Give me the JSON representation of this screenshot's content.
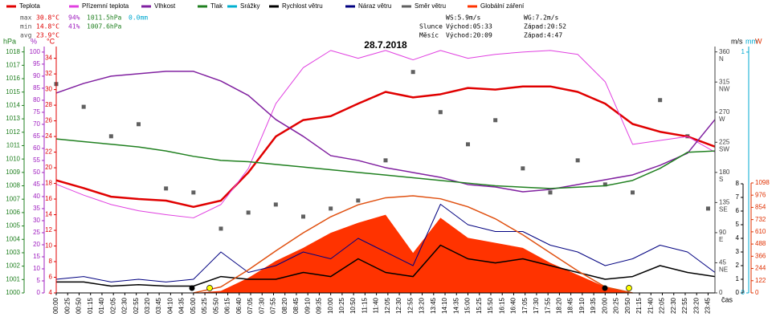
{
  "chart_data": {
    "type": "line",
    "title": "28.7.2018",
    "x_label": "čas",
    "stats": [
      {
        "label": "max",
        "temperature": "30.8°C",
        "humidity": "94%",
        "pressure": "1011.5hPa",
        "precipitation": "0.0mm"
      },
      {
        "label": "min",
        "temperature": "14.8°C",
        "humidity": "41%",
        "pressure": "1007.6hPa"
      },
      {
        "label": "avg",
        "temperature": "23.9°C"
      }
    ],
    "info": {
      "wind": "WS:5.9m/s",
      "gust": "WG:7.2m/s",
      "sun": {
        "label": "Slunce",
        "rise": "Východ:05:33",
        "set": "Západ:20:52"
      },
      "moon": {
        "label": "Měsíc",
        "rise": "Východ:20:09",
        "set": "Západ:4:47"
      }
    },
    "xlim": [
      0,
      1440
    ],
    "xticks": [
      {
        "value": 0,
        "label": "00:00"
      },
      {
        "value": 25,
        "label": "00:25"
      },
      {
        "value": 50,
        "label": "00:50"
      },
      {
        "value": 75,
        "label": "01:15"
      },
      {
        "value": 100,
        "label": "01:40"
      },
      {
        "value": 125,
        "label": "02:05"
      },
      {
        "value": 150,
        "label": "02:30"
      },
      {
        "value": 175,
        "label": "02:55"
      },
      {
        "value": 200,
        "label": "03:20"
      },
      {
        "value": 225,
        "label": "03:45"
      },
      {
        "value": 250,
        "label": "04:10"
      },
      {
        "value": 275,
        "label": "04:35"
      },
      {
        "value": 300,
        "label": "05:00"
      },
      {
        "value": 325,
        "label": "05:25"
      },
      {
        "value": 350,
        "label": "05:50"
      },
      {
        "value": 375,
        "label": "06:15"
      },
      {
        "value": 400,
        "label": "06:40"
      },
      {
        "value": 425,
        "label": "07:05"
      },
      {
        "value": 450,
        "label": "07:30"
      },
      {
        "value": 475,
        "label": "07:55"
      },
      {
        "value": 500,
        "label": "08:20"
      },
      {
        "value": 525,
        "label": "08:45"
      },
      {
        "value": 550,
        "label": "09:10"
      },
      {
        "value": 575,
        "label": "09:35"
      },
      {
        "value": 600,
        "label": "10:00"
      },
      {
        "value": 625,
        "label": "10:25"
      },
      {
        "value": 650,
        "label": "10:50"
      },
      {
        "value": 675,
        "label": "11:15"
      },
      {
        "value": 700,
        "label": "11:40"
      },
      {
        "value": 725,
        "label": "12:05"
      },
      {
        "value": 750,
        "label": "12:30"
      },
      {
        "value": 775,
        "label": "12:55"
      },
      {
        "value": 800,
        "label": "13:20"
      },
      {
        "value": 825,
        "label": "13:45"
      },
      {
        "value": 850,
        "label": "14:10"
      },
      {
        "value": 875,
        "label": "14:35"
      },
      {
        "value": 900,
        "label": "15:00"
      },
      {
        "value": 925,
        "label": "15:25"
      },
      {
        "value": 950,
        "label": "15:50"
      },
      {
        "value": 975,
        "label": "16:15"
      },
      {
        "value": 1000,
        "label": "16:40"
      },
      {
        "value": 1025,
        "label": "17:05"
      },
      {
        "value": 1050,
        "label": "17:30"
      },
      {
        "value": 1075,
        "label": "17:55"
      },
      {
        "value": 1100,
        "label": "18:20"
      },
      {
        "value": 1125,
        "label": "18:45"
      },
      {
        "value": 1150,
        "label": "19:10"
      },
      {
        "value": 1175,
        "label": "19:35"
      },
      {
        "value": 1200,
        "label": "20:00"
      },
      {
        "value": 1225,
        "label": "20:25"
      },
      {
        "value": 1250,
        "label": "20:50"
      },
      {
        "value": 1275,
        "label": "21:15"
      },
      {
        "value": 1300,
        "label": "21:40"
      },
      {
        "value": 1325,
        "label": "22:05"
      },
      {
        "value": 1350,
        "label": "22:30"
      },
      {
        "value": 1375,
        "label": "22:55"
      },
      {
        "value": 1400,
        "label": "23:20"
      },
      {
        "value": 1425,
        "label": "23:45"
      }
    ],
    "axes": {
      "pressure": {
        "unit": "hPa",
        "color": "#208020",
        "ylim": [
          1000,
          1018.4
        ],
        "yticks": [
          1000,
          1001,
          1002,
          1003,
          1004,
          1005,
          1006,
          1007,
          1008,
          1009,
          1010,
          1011,
          1012,
          1013,
          1014,
          1015,
          1016,
          1017,
          1018
        ]
      },
      "humidity": {
        "unit": "%",
        "color": "#a020c0",
        "ylim": [
          0,
          102.3
        ],
        "yticks": [
          0,
          5,
          10,
          15,
          20,
          25,
          30,
          35,
          40,
          45,
          50,
          55,
          60,
          65,
          70,
          75,
          80,
          85,
          90,
          95,
          100
        ]
      },
      "temperature": {
        "unit": "°C",
        "color": "#e00000",
        "ylim": [
          4,
          35.5
        ],
        "yticks": [
          4,
          6,
          8,
          10,
          12,
          14,
          16,
          18,
          20,
          22,
          24,
          26,
          28,
          30,
          32,
          34
        ]
      },
      "direction": {
        "color": "#404040",
        "ylim": [
          0,
          368
        ],
        "yticks": [
          0,
          45,
          90,
          135,
          180,
          225,
          270,
          315,
          360
        ],
        "compass": [
          {
            "value": 45,
            "label": "NE"
          },
          {
            "value": 90,
            "label": "E"
          },
          {
            "value": 135,
            "label": "SE"
          },
          {
            "value": 180,
            "label": "S"
          },
          {
            "value": 225,
            "label": "SW"
          },
          {
            "value": 270,
            "label": "W"
          },
          {
            "value": 315,
            "label": "NW"
          },
          {
            "value": 360,
            "label": "N"
          }
        ]
      },
      "wind": {
        "unit": "m/s",
        "color": "#000000",
        "ylim": [
          0,
          18.06
        ],
        "yticks": [
          0,
          1,
          2,
          3,
          4,
          5,
          6,
          7,
          8
        ]
      },
      "precip": {
        "unit": "mm",
        "color": "#00a8d0",
        "ylim": [
          0,
          1.023
        ],
        "yticks": [
          0,
          1
        ]
      },
      "radiation": {
        "unit": "W",
        "color": "#e03000",
        "ylim": [
          0,
          2460
        ],
        "yticks": [
          0,
          122,
          244,
          366,
          488,
          610,
          732,
          854,
          976,
          1098
        ]
      }
    },
    "series": [
      {
        "name": "Teplota",
        "axis": "temperature",
        "kind": "line",
        "width": 2.5,
        "color": "#e00000",
        "x": [
          0,
          60,
          120,
          180,
          240,
          300,
          360,
          420,
          480,
          540,
          600,
          660,
          720,
          780,
          840,
          900,
          960,
          1020,
          1080,
          1140,
          1200,
          1260,
          1320,
          1380,
          1440
        ],
        "values": [
          18.4,
          17.4,
          16.3,
          16,
          15.8,
          15,
          15.8,
          19.4,
          24,
          26.1,
          26.6,
          28.2,
          29.7,
          29,
          29.4,
          30.2,
          30,
          30.4,
          30.4,
          29.7,
          28.2,
          25.6,
          24.6,
          24,
          22.7
        ]
      },
      {
        "name": "Přízemní teplota",
        "axis": "temperature",
        "kind": "line",
        "width": 1,
        "color": "#e040e0",
        "x": [
          0,
          60,
          120,
          180,
          240,
          300,
          360,
          420,
          480,
          540,
          600,
          660,
          720,
          780,
          840,
          900,
          960,
          1020,
          1080,
          1140,
          1200,
          1260,
          1320,
          1380,
          1440
        ],
        "values": [
          17.9,
          16.5,
          15.3,
          14.5,
          14,
          13.6,
          15.3,
          19.9,
          28.2,
          32.8,
          35,
          34,
          35,
          33.8,
          35,
          34,
          34.5,
          34.8,
          35,
          34.5,
          31,
          23,
          23.5,
          24,
          22
        ]
      },
      {
        "name": "Vlhkost",
        "axis": "humidity",
        "kind": "line",
        "width": 1.5,
        "color": "#8020a0",
        "x": [
          0,
          60,
          120,
          180,
          240,
          300,
          360,
          420,
          480,
          540,
          600,
          660,
          720,
          780,
          840,
          900,
          960,
          1020,
          1080,
          1140,
          1200,
          1260,
          1320,
          1380,
          1440
        ],
        "values": [
          83,
          87,
          90,
          91,
          92,
          92,
          88,
          82,
          72,
          65,
          57,
          55,
          52,
          50,
          48,
          45,
          44,
          42,
          43,
          45,
          47,
          49,
          53,
          58,
          72
        ]
      },
      {
        "name": "Tlak",
        "axis": "pressure",
        "kind": "line",
        "width": 1.5,
        "color": "#208020",
        "x": [
          0,
          60,
          120,
          180,
          240,
          300,
          360,
          420,
          480,
          540,
          600,
          660,
          720,
          780,
          840,
          900,
          960,
          1020,
          1080,
          1140,
          1200,
          1260,
          1320,
          1380,
          1440
        ],
        "values": [
          1011.5,
          1011.3,
          1011.1,
          1010.9,
          1010.6,
          1010.2,
          1009.9,
          1009.8,
          1009.6,
          1009.4,
          1009.2,
          1009,
          1008.8,
          1008.6,
          1008.4,
          1008.2,
          1008,
          1007.9,
          1007.8,
          1007.9,
          1008,
          1008.4,
          1009.3,
          1010.5,
          1010.6
        ]
      },
      {
        "name": "Srážky",
        "axis": "precip",
        "kind": "line",
        "width": 1,
        "color": "#00b0d0",
        "x": [
          0,
          1440
        ],
        "values": [
          0,
          0
        ]
      },
      {
        "name": "Rychlost větru",
        "axis": "wind",
        "kind": "line",
        "width": 1.5,
        "color": "#000000",
        "x": [
          0,
          60,
          120,
          180,
          240,
          300,
          360,
          420,
          480,
          540,
          600,
          660,
          720,
          780,
          840,
          900,
          960,
          1020,
          1080,
          1140,
          1200,
          1260,
          1320,
          1380,
          1440
        ],
        "values": [
          0.8,
          0.8,
          0.5,
          0.6,
          0.5,
          0.5,
          1.2,
          1,
          1,
          1.5,
          1.2,
          2.5,
          1.5,
          1.2,
          3.5,
          2.5,
          2.2,
          2.5,
          2,
          1.5,
          1,
          1.2,
          2,
          1.5,
          1.2
        ]
      },
      {
        "name": "Náraz větru",
        "axis": "wind",
        "kind": "line",
        "width": 1,
        "color": "#000080",
        "x": [
          0,
          60,
          120,
          180,
          240,
          300,
          360,
          420,
          480,
          540,
          600,
          660,
          720,
          780,
          840,
          900,
          960,
          1020,
          1080,
          1140,
          1200,
          1260,
          1320,
          1380,
          1440
        ],
        "values": [
          1,
          1.2,
          0.8,
          1,
          0.8,
          1,
          3,
          1.5,
          2,
          3,
          2.5,
          4,
          3,
          2,
          6.5,
          5,
          4.5,
          4.5,
          3.5,
          3,
          2,
          2.5,
          3.5,
          3,
          1.5
        ]
      },
      {
        "name": "Směr větru",
        "axis": "direction",
        "kind": "scatter",
        "color": "#606060",
        "x": [
          0,
          60,
          120,
          180,
          240,
          300,
          360,
          420,
          480,
          540,
          600,
          660,
          720,
          780,
          840,
          900,
          960,
          1020,
          1080,
          1140,
          1200,
          1260,
          1320,
          1380,
          1425
        ],
        "values": [
          312,
          278,
          234,
          252,
          156,
          150,
          96,
          120,
          132,
          114,
          126,
          138,
          198,
          330,
          270,
          222,
          258,
          186,
          150,
          198,
          162,
          150,
          288,
          234,
          126
        ]
      },
      {
        "name": "Globální záření",
        "axis": "radiation",
        "kind": "area",
        "color": "#ff3300",
        "x": [
          300,
          360,
          420,
          480,
          540,
          600,
          660,
          720,
          780,
          840,
          900,
          960,
          1020,
          1080,
          1140,
          1200,
          1260
        ],
        "values": [
          0,
          20,
          150,
          320,
          450,
          600,
          700,
          780,
          400,
          750,
          550,
          500,
          450,
          300,
          180,
          60,
          0
        ]
      },
      {
        "axis": "radiation",
        "kind": "line",
        "width": 1.5,
        "color": "#e05010",
        "x": [
          300,
          360,
          420,
          480,
          540,
          600,
          660,
          720,
          780,
          840,
          900,
          960,
          1020,
          1080,
          1140,
          1200,
          1260
        ],
        "values": [
          0,
          60,
          230,
          420,
          600,
          760,
          880,
          950,
          970,
          940,
          860,
          740,
          580,
          400,
          220,
          60,
          0
        ]
      }
    ]
  }
}
